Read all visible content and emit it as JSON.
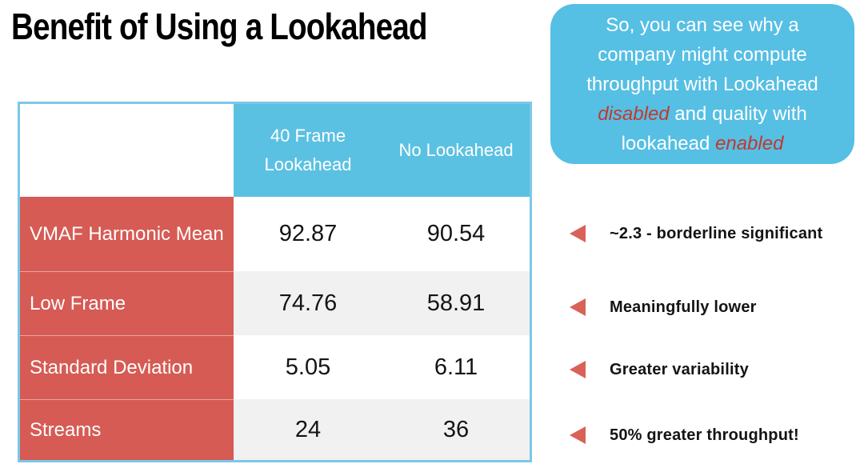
{
  "title": "Benefit of Using a Lookahead",
  "callout": {
    "segments": [
      {
        "text": "So, you can see why a company might compute throughput with Lookahead ",
        "style": "normal"
      },
      {
        "text": "disabled",
        "style": "em"
      },
      {
        "text": " and quality with lookahead ",
        "style": "normal"
      },
      {
        "text": "enabled",
        "style": "em"
      }
    ],
    "bg_color": "#56bfe4",
    "text_color": "#ffffff",
    "emphasis_color": "#c5372c"
  },
  "table": {
    "columns": [
      "",
      "40 Frame Lookahead",
      "No Lookahead"
    ],
    "rows": [
      {
        "label": "VMAF Harmonic Mean",
        "values": [
          "92.87",
          "90.54"
        ]
      },
      {
        "label": "Low Frame",
        "values": [
          "74.76",
          "58.91"
        ]
      },
      {
        "label": "Standard Deviation",
        "values": [
          "5.05",
          "6.11"
        ]
      },
      {
        "label": "Streams",
        "values": [
          "24",
          "36"
        ]
      }
    ],
    "header_bg": "#5bc1e2",
    "label_bg": "#d65b54",
    "row_alt_bg": "#f1f1f1",
    "border_color": "#7cc7e8"
  },
  "annotations": [
    {
      "text": "~2.3 - borderline significant"
    },
    {
      "text": "Meaningfully lower"
    },
    {
      "text": "Greater variability"
    },
    {
      "text": "50% greater throughput!"
    }
  ],
  "arrow_color": "#d96258"
}
